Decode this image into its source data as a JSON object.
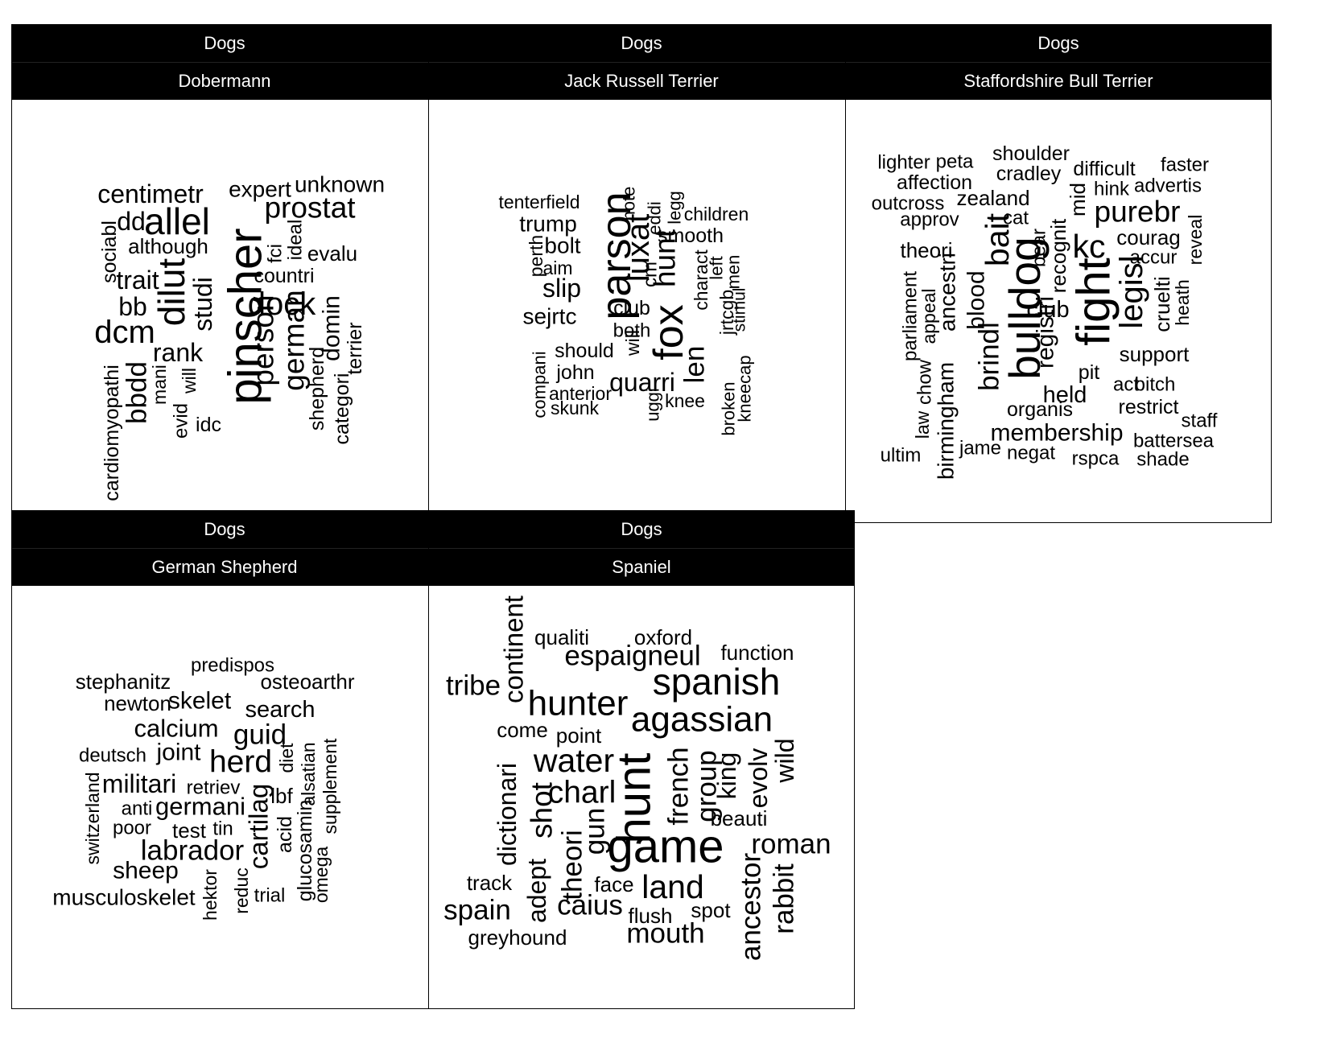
{
  "chart_data": [
    {
      "type": "wordcloud",
      "facet": "Dogs",
      "subfacet": "Dobermann",
      "words": [
        {
          "text": "pinscher",
          "size": 5,
          "rotate": true
        },
        {
          "text": "allel",
          "size": 4
        },
        {
          "text": "dilut",
          "size": 4,
          "rotate": true
        },
        {
          "text": "dcm",
          "size": 3.5
        },
        {
          "text": "dock",
          "size": 3.5
        },
        {
          "text": "prostat",
          "size": 3.2
        },
        {
          "text": "person",
          "size": 3.2,
          "rotate": true
        },
        {
          "text": "german",
          "size": 3.2,
          "rotate": true
        },
        {
          "text": "centimetr",
          "size": 2.8
        },
        {
          "text": "dd",
          "size": 2.8
        },
        {
          "text": "bbdd",
          "size": 3,
          "rotate": true
        },
        {
          "text": "studi",
          "size": 2.8,
          "rotate": true
        },
        {
          "text": "rank",
          "size": 2.8
        },
        {
          "text": "trait",
          "size": 2.8
        },
        {
          "text": "bb",
          "size": 2.8
        },
        {
          "text": "domin",
          "size": 2.6,
          "rotate": true
        },
        {
          "text": "expert",
          "size": 2.4
        },
        {
          "text": "unknown",
          "size": 2.4
        },
        {
          "text": "although",
          "size": 2.3
        },
        {
          "text": "evalu",
          "size": 2.3
        },
        {
          "text": "countri",
          "size": 2.2
        },
        {
          "text": "sociabl",
          "size": 2.2,
          "rotate": true
        },
        {
          "text": "ideal",
          "size": 2.1,
          "rotate": true
        },
        {
          "text": "fci",
          "size": 2.1,
          "rotate": true
        },
        {
          "text": "terrier",
          "size": 2.2,
          "rotate": true
        },
        {
          "text": "shepherd",
          "size": 2.2,
          "rotate": true
        },
        {
          "text": "categori",
          "size": 2.2,
          "rotate": true
        },
        {
          "text": "cardiomyopathi",
          "size": 2.2,
          "rotate": true
        },
        {
          "text": "mani",
          "size": 2,
          "rotate": true
        },
        {
          "text": "will",
          "size": 2,
          "rotate": true
        },
        {
          "text": "evid",
          "size": 2.1,
          "rotate": true
        },
        {
          "text": "idc",
          "size": 2.2
        }
      ]
    },
    {
      "type": "wordcloud",
      "facet": "Dogs",
      "subfacet": "Jack Russell Terrier",
      "words": [
        {
          "text": "parson",
          "size": 4.5,
          "rotate": true
        },
        {
          "text": "fox",
          "size": 4.5,
          "rotate": true
        },
        {
          "text": "luxat",
          "size": 3.5,
          "rotate": true
        },
        {
          "text": "hunt",
          "size": 3.2,
          "rotate": true
        },
        {
          "text": "len",
          "size": 3,
          "rotate": true
        },
        {
          "text": "quarri",
          "size": 2.8
        },
        {
          "text": "slip",
          "size": 2.8
        },
        {
          "text": "sejrtc",
          "size": 2.4
        },
        {
          "text": "trump",
          "size": 2.4
        },
        {
          "text": "bolt",
          "size": 2.4
        },
        {
          "text": "smooth",
          "size": 2.2
        },
        {
          "text": "club",
          "size": 2.2
        },
        {
          "text": "both",
          "size": 2.1
        },
        {
          "text": "should",
          "size": 2.2
        },
        {
          "text": "john",
          "size": 2.2
        },
        {
          "text": "tenterfield",
          "size": 2
        },
        {
          "text": "children",
          "size": 2
        },
        {
          "text": "cm",
          "size": 2.1,
          "rotate": true
        },
        {
          "text": "eddi",
          "size": 1.9,
          "rotate": true
        },
        {
          "text": "note",
          "size": 1.9,
          "rotate": true
        },
        {
          "text": "legg",
          "size": 1.9,
          "rotate": true
        },
        {
          "text": "perth",
          "size": 2,
          "rotate": true
        },
        {
          "text": "aim",
          "size": 2
        },
        {
          "text": "charact",
          "size": 2,
          "rotate": true
        },
        {
          "text": "left",
          "size": 1.9,
          "rotate": true
        },
        {
          "text": "jrtcgb",
          "size": 2,
          "rotate": true
        },
        {
          "text": "men",
          "size": 1.9,
          "rotate": true
        },
        {
          "text": "stimul",
          "size": 1.8,
          "rotate": true
        },
        {
          "text": "will",
          "size": 2,
          "rotate": true
        },
        {
          "text": "knee",
          "size": 2
        },
        {
          "text": "anterior",
          "size": 2
        },
        {
          "text": "skunk",
          "size": 2
        },
        {
          "text": "compani",
          "size": 1.9,
          "rotate": true
        },
        {
          "text": "uggi",
          "size": 1.9,
          "rotate": true
        },
        {
          "text": "broken",
          "size": 1.9,
          "rotate": true
        },
        {
          "text": "kneecap",
          "size": 1.9,
          "rotate": true
        }
      ]
    },
    {
      "type": "wordcloud",
      "facet": "Dogs",
      "subfacet": "Staffordshire Bull Terrier",
      "words": [
        {
          "text": "fight",
          "size": 5,
          "rotate": true
        },
        {
          "text": "bulldog",
          "size": 4.8,
          "rotate": true
        },
        {
          "text": "kc",
          "size": 3.6
        },
        {
          "text": "bait",
          "size": 3.6,
          "rotate": true
        },
        {
          "text": "legisl",
          "size": 3.5,
          "rotate": true
        },
        {
          "text": "purebr",
          "size": 3.2
        },
        {
          "text": "brindl",
          "size": 3,
          "rotate": true
        },
        {
          "text": "membership",
          "size": 2.6
        },
        {
          "text": "blood",
          "size": 2.6,
          "rotate": true
        },
        {
          "text": "registri",
          "size": 2.6,
          "rotate": true
        },
        {
          "text": "club",
          "size": 2.5
        },
        {
          "text": "held",
          "size": 2.5
        },
        {
          "text": "recognit",
          "size": 2.3,
          "rotate": true
        },
        {
          "text": "mid",
          "size": 2.3,
          "rotate": true
        },
        {
          "text": "ancestri",
          "size": 2.4,
          "rotate": true
        },
        {
          "text": "birmingham",
          "size": 2.4,
          "rotate": true
        },
        {
          "text": "cruelti",
          "size": 2.3,
          "rotate": true
        },
        {
          "text": "courag",
          "size": 2.3
        },
        {
          "text": "theori",
          "size": 2.3
        },
        {
          "text": "zealand",
          "size": 2.3
        },
        {
          "text": "support",
          "size": 2.3
        },
        {
          "text": "shoulder",
          "size": 2.2
        },
        {
          "text": "difficult",
          "size": 2.2
        },
        {
          "text": "faster",
          "size": 2.1
        },
        {
          "text": "lighter",
          "size": 2.1
        },
        {
          "text": "peta",
          "size": 2.1
        },
        {
          "text": "affection",
          "size": 2.2
        },
        {
          "text": "cradley",
          "size": 2.2
        },
        {
          "text": "hink",
          "size": 2.1
        },
        {
          "text": "advertis",
          "size": 2.1
        },
        {
          "text": "outcross",
          "size": 2.1
        },
        {
          "text": "approv",
          "size": 2.1
        },
        {
          "text": "cat",
          "size": 2.1
        },
        {
          "text": "bear",
          "size": 2.1,
          "rotate": true
        },
        {
          "text": "accur",
          "size": 2.1
        },
        {
          "text": "reveal",
          "size": 2,
          "rotate": true
        },
        {
          "text": "heath",
          "size": 2,
          "rotate": true
        },
        {
          "text": "parliament",
          "size": 2.1,
          "rotate": true
        },
        {
          "text": "appeal",
          "size": 2,
          "rotate": true
        },
        {
          "text": "chow",
          "size": 2.1,
          "rotate": true
        },
        {
          "text": "law",
          "size": 2,
          "rotate": true
        },
        {
          "text": "pit",
          "size": 2.2
        },
        {
          "text": "act",
          "size": 2.1
        },
        {
          "text": "bitch",
          "size": 2.1
        },
        {
          "text": "restrict",
          "size": 2.2
        },
        {
          "text": "organis",
          "size": 2.2
        },
        {
          "text": "staff",
          "size": 2.1
        },
        {
          "text": "battersea",
          "size": 2.1
        },
        {
          "text": "jame",
          "size": 2.1
        },
        {
          "text": "negat",
          "size": 2.1
        },
        {
          "text": "ultim",
          "size": 2.1
        },
        {
          "text": "rspca",
          "size": 2.1
        },
        {
          "text": "shade",
          "size": 2.1
        }
      ]
    },
    {
      "type": "wordcloud",
      "facet": "Dogs",
      "subfacet": "German Shepherd",
      "words": [
        {
          "text": "herd",
          "size": 3.4
        },
        {
          "text": "labrador",
          "size": 3
        },
        {
          "text": "cartilag",
          "size": 2.9,
          "rotate": true
        },
        {
          "text": "guid",
          "size": 3
        },
        {
          "text": "militari",
          "size": 2.8
        },
        {
          "text": "germani",
          "size": 2.7
        },
        {
          "text": "calcium",
          "size": 2.7
        },
        {
          "text": "skelet",
          "size": 2.6
        },
        {
          "text": "joint",
          "size": 2.6
        },
        {
          "text": "sheep",
          "size": 2.6
        },
        {
          "text": "search",
          "size": 2.5
        },
        {
          "text": "musculoskelet",
          "size": 2.4
        },
        {
          "text": "stephanitz",
          "size": 2.3
        },
        {
          "text": "osteoarthr",
          "size": 2.3
        },
        {
          "text": "newton",
          "size": 2.3
        },
        {
          "text": "predispos",
          "size": 2.1
        },
        {
          "text": "deutsch",
          "size": 2.1
        },
        {
          "text": "lbf",
          "size": 2.3
        },
        {
          "text": "acid",
          "size": 2.2,
          "rotate": true
        },
        {
          "text": "glucosamin",
          "size": 2.2,
          "rotate": true
        },
        {
          "text": "alsatian",
          "size": 2,
          "rotate": true
        },
        {
          "text": "supplement",
          "size": 2,
          "rotate": true
        },
        {
          "text": "omega",
          "size": 2,
          "rotate": true
        },
        {
          "text": "diet",
          "size": 2,
          "rotate": true
        },
        {
          "text": "switzerland",
          "size": 2,
          "rotate": true
        },
        {
          "text": "retriev",
          "size": 2.1
        },
        {
          "text": "anti",
          "size": 2.1
        },
        {
          "text": "poor",
          "size": 2.1
        },
        {
          "text": "test",
          "size": 2.3
        },
        {
          "text": "tin",
          "size": 2.1
        },
        {
          "text": "trial",
          "size": 2.1
        },
        {
          "text": "hektor",
          "size": 2,
          "rotate": true
        },
        {
          "text": "reduc",
          "size": 2,
          "rotate": true
        }
      ]
    },
    {
      "type": "wordcloud",
      "facet": "Dogs",
      "subfacet": "Spaniel",
      "words": [
        {
          "text": "game",
          "size": 5
        },
        {
          "text": "hunt",
          "size": 5,
          "rotate": true
        },
        {
          "text": "spanish",
          "size": 4
        },
        {
          "text": "hunter",
          "size": 3.8
        },
        {
          "text": "agassian",
          "size": 3.8
        },
        {
          "text": "water",
          "size": 3.6
        },
        {
          "text": "land",
          "size": 3.6
        },
        {
          "text": "charl",
          "size": 3.4
        },
        {
          "text": "shot",
          "size": 3.2,
          "rotate": true
        },
        {
          "text": "espaigneul",
          "size": 3
        },
        {
          "text": "tribe",
          "size": 3
        },
        {
          "text": "continent",
          "size": 2.9,
          "rotate": true
        },
        {
          "text": "french",
          "size": 3,
          "rotate": true
        },
        {
          "text": "group",
          "size": 3,
          "rotate": true
        },
        {
          "text": "theori",
          "size": 3,
          "rotate": true
        },
        {
          "text": "gun",
          "size": 3,
          "rotate": true
        },
        {
          "text": "roman",
          "size": 3
        },
        {
          "text": "ancestor",
          "size": 3,
          "rotate": true
        },
        {
          "text": "rabbit",
          "size": 3,
          "rotate": true
        },
        {
          "text": "mouth",
          "size": 3
        },
        {
          "text": "caius",
          "size": 3
        },
        {
          "text": "spain",
          "size": 3
        },
        {
          "text": "dictionari",
          "size": 2.8,
          "rotate": true
        },
        {
          "text": "adept",
          "size": 2.8,
          "rotate": true
        },
        {
          "text": "wild",
          "size": 2.8,
          "rotate": true
        },
        {
          "text": "king",
          "size": 2.8,
          "rotate": true
        },
        {
          "text": "evolv",
          "size": 2.8,
          "rotate": true
        },
        {
          "text": "qualiti",
          "size": 2.3
        },
        {
          "text": "oxford",
          "size": 2.3
        },
        {
          "text": "function",
          "size": 2.3
        },
        {
          "text": "come",
          "size": 2.3
        },
        {
          "text": "point",
          "size": 2.3
        },
        {
          "text": "beauti",
          "size": 2.3
        },
        {
          "text": "track",
          "size": 2.3
        },
        {
          "text": "face",
          "size": 2.3
        },
        {
          "text": "spot",
          "size": 2.3
        },
        {
          "text": "flush",
          "size": 2.3
        },
        {
          "text": "greyhound",
          "size": 2.3
        }
      ]
    }
  ]
}
